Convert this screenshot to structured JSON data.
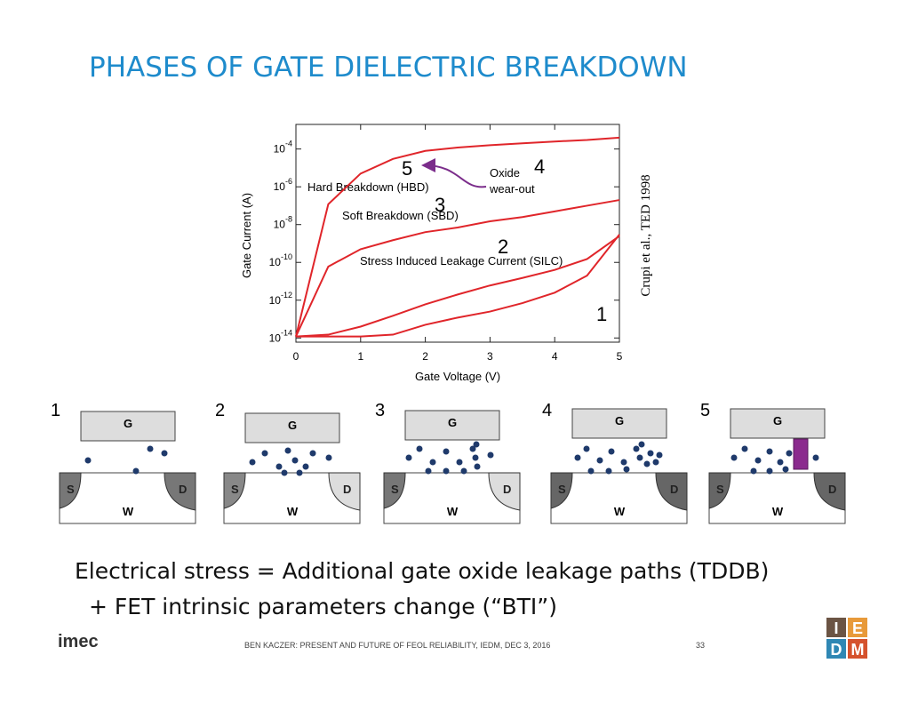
{
  "title": "PHASES OF GATE DIELECTRIC BREAKDOWN",
  "chart_data": {
    "type": "line",
    "x_label": "Gate Voltage (V)",
    "y_label": "Gate Current (A)",
    "x": [
      0,
      0.5,
      1,
      1.5,
      2,
      2.5,
      3,
      3.5,
      4,
      4.5,
      5
    ],
    "series": [
      {
        "color": "#e0252a",
        "values": [
          1.2e-14,
          1.2e-14,
          1.2e-14,
          1.5e-14,
          5e-14,
          1.2e-13,
          2.5e-13,
          7e-13,
          2.5e-12,
          2e-11,
          3e-09
        ]
      },
      {
        "color": "#e0252a",
        "values": [
          1.2e-14,
          1.5e-14,
          4e-14,
          1.5e-13,
          6e-13,
          2e-12,
          6e-12,
          1.5e-11,
          4e-11,
          1.5e-10,
          2.5e-09
        ]
      },
      {
        "color": "#e0252a",
        "values": [
          1.2e-14,
          6e-11,
          5e-10,
          1.5e-09,
          4e-09,
          7e-09,
          1.5e-08,
          2.5e-08,
          5e-08,
          1e-07,
          2e-07
        ]
      },
      {
        "color": "#e0252a",
        "values": [
          1.2e-14,
          1.2e-07,
          5e-06,
          3e-05,
          8e-05,
          0.00012,
          0.00016,
          0.0002,
          0.00025,
          0.0003,
          0.0004
        ]
      }
    ],
    "log_y": true,
    "xlim": [
      0,
      5
    ],
    "xticks": [
      0,
      1,
      2,
      3,
      4,
      5
    ],
    "ylim": [
      6e-15,
      0.002
    ],
    "yticks": [
      {
        "value": 1e-14,
        "label": "10-14"
      },
      {
        "value": 1e-12,
        "label": "10-12"
      },
      {
        "value": 1e-10,
        "label": "10-10"
      },
      {
        "value": 1e-08,
        "label": "10-8"
      },
      {
        "value": 1e-06,
        "label": "10-6"
      },
      {
        "value": 0.0001,
        "label": "10-4"
      }
    ],
    "annotations": {
      "hbd": "Hard Breakdown (HBD)",
      "sbd": "Soft Breakdown (SBD)",
      "silc": "Stress Induced Leakage Current (SILC)",
      "oxide": [
        "Oxide",
        "wear-out"
      ],
      "phases": [
        "1",
        "2",
        "3",
        "4",
        "5"
      ]
    },
    "citation": "Crupi et al., TED 1998"
  },
  "panels": [
    {
      "number": "1",
      "gate": "G",
      "source": "S",
      "drain": "D",
      "well": "W"
    },
    {
      "number": "2",
      "gate": "G",
      "source": "S",
      "drain": "D",
      "well": "W"
    },
    {
      "number": "3",
      "gate": "G",
      "source": "S",
      "drain": "D",
      "well": "W"
    },
    {
      "number": "4",
      "gate": "G",
      "source": "S",
      "drain": "D",
      "well": "W"
    },
    {
      "number": "5",
      "gate": "G",
      "source": "S",
      "drain": "D",
      "well": "W"
    }
  ],
  "body": [
    "Electrical stress = Additional gate oxide leakage paths (TDDB)",
    "+ FET intrinsic parameters change (“BTI”)"
  ],
  "footer": {
    "logo": "imec",
    "text": "BEN KACZER: PRESENT AND FUTURE OF FEOL RELIABILITY, IEDM, DEC 3, 2016",
    "page": "33",
    "badge": [
      "I",
      "E",
      "D",
      "M"
    ]
  }
}
